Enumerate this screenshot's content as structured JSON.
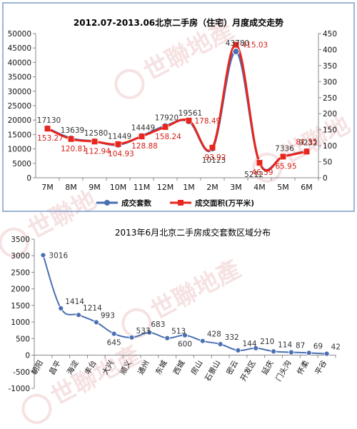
{
  "chart_data": [
    {
      "type": "line",
      "title": "2012.07-2013.06北京二手房（住宅）月度成交走势",
      "categories": [
        "7M",
        "8M",
        "9M",
        "10M",
        "11M",
        "12M",
        "1M",
        "2M",
        "3M",
        "4M",
        "5M",
        "6M"
      ],
      "series": [
        {
          "name": "成交套数",
          "axis": "left",
          "color": "#4a6fb3",
          "marker": "circle",
          "values": [
            17130,
            13639,
            12580,
            11449,
            14449,
            17920,
            19561,
            10123,
            43780,
            5212,
            7336,
            9232
          ]
        },
        {
          "name": "成交面积(万平米)",
          "axis": "right",
          "color": "#e8261e",
          "marker": "square",
          "values": [
            153.27,
            120.81,
            112.94,
            104.93,
            128.88,
            158.24,
            178.49,
            93.92,
            415.03,
            46.59,
            65.95,
            81.55
          ]
        }
      ],
      "ylim_left": [
        0,
        50000
      ],
      "yticks_left": [
        0,
        5000,
        10000,
        15000,
        20000,
        25000,
        30000,
        35000,
        40000,
        45000,
        50000
      ],
      "ylim_right": [
        0,
        450
      ],
      "yticks_right": [
        0,
        50,
        100,
        150,
        200,
        250,
        300,
        350,
        400,
        450
      ],
      "legend_position": "bottom-center",
      "grid": false
    },
    {
      "type": "line",
      "title": "2013年6月北京二手房成交套数区域分布",
      "categories": [
        "朝阳",
        "昌平",
        "海淀",
        "丰台",
        "大兴",
        "顺义",
        "通州",
        "东城",
        "西城",
        "房山",
        "石景山",
        "密云",
        "开发区",
        "延庆",
        "门头沟",
        "怀柔",
        "平谷"
      ],
      "series": [
        {
          "name": "",
          "color": "#4a6fb3",
          "marker": "circle",
          "values": [
            3016,
            1414,
            1214,
            993,
            645,
            533,
            683,
            513,
            600,
            428,
            332,
            144,
            210,
            114,
            87,
            69,
            42
          ]
        }
      ],
      "ylim": [
        -1000,
        3500
      ],
      "yticks": [
        -1000,
        -500,
        0,
        500,
        1000,
        1500,
        2000,
        2500,
        3000,
        3500
      ],
      "grid": false
    }
  ],
  "watermark": {
    "text": "世聯地產",
    "color": "#c7373a"
  }
}
